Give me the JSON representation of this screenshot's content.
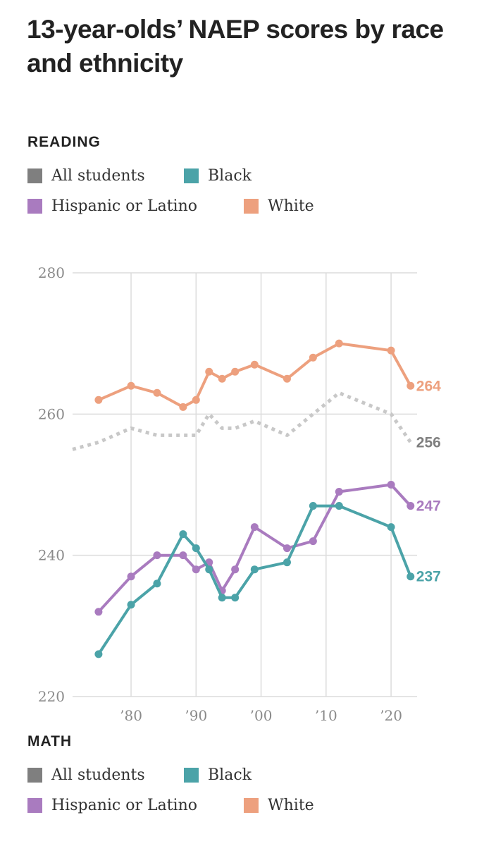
{
  "header": {
    "title": "13-year-olds’ NAEP scores by race and ethnicity"
  },
  "sections": {
    "reading_label": "READING",
    "math_label": "MATH"
  },
  "legend": [
    {
      "key": "all",
      "label": "All students",
      "color": "#7f7f7f"
    },
    {
      "key": "black",
      "label": "Black",
      "color": "#4ba3a8"
    },
    {
      "key": "hispanic",
      "label": "Hispanic or Latino",
      "color": "#a97bbf"
    },
    {
      "key": "white",
      "label": "White",
      "color": "#eda07e"
    }
  ],
  "chart_data": {
    "type": "line",
    "title": "13-year-olds’ NAEP scores by race and ethnicity",
    "subtitle": "READING",
    "xlabel": "",
    "ylabel": "",
    "ylim": [
      220,
      280
    ],
    "xlim": [
      1971,
      2024
    ],
    "y_ticks": [
      {
        "value": 220,
        "label": "220"
      },
      {
        "value": 240,
        "label": "240"
      },
      {
        "value": 260,
        "label": "260"
      },
      {
        "value": 280,
        "label": "280"
      }
    ],
    "x_ticks": [
      {
        "value": 1980,
        "label": "’80"
      },
      {
        "value": 1990,
        "label": "’90"
      },
      {
        "value": 2000,
        "label": "’00"
      },
      {
        "value": 2010,
        "label": "’10"
      },
      {
        "value": 2020,
        "label": "’20"
      }
    ],
    "grid": true,
    "series": [
      {
        "name": "All students",
        "key": "all",
        "color": "#c8c8c8",
        "label_color": "#7f7f7f",
        "dashed": true,
        "markers": false,
        "end_label": "256",
        "x": [
          1971,
          1975,
          1980,
          1984,
          1988,
          1990,
          1992,
          1994,
          1996,
          1999,
          2004,
          2008,
          2012,
          2020,
          2023
        ],
        "y": [
          255,
          256,
          258,
          257,
          257,
          257,
          260,
          258,
          258,
          259,
          257,
          260,
          263,
          260,
          256
        ]
      },
      {
        "name": "White",
        "key": "white",
        "color": "#eda07e",
        "label_color": "#eda07e",
        "dashed": false,
        "markers": true,
        "end_label": "264",
        "x": [
          1975,
          1980,
          1984,
          1988,
          1990,
          1992,
          1994,
          1996,
          1999,
          2004,
          2008,
          2012,
          2020,
          2023
        ],
        "y": [
          262,
          264,
          263,
          261,
          262,
          266,
          265,
          266,
          267,
          265,
          268,
          270,
          269,
          264
        ]
      },
      {
        "name": "Hispanic or Latino",
        "key": "hispanic",
        "color": "#a97bbf",
        "label_color": "#a97bbf",
        "dashed": false,
        "markers": true,
        "end_label": "247",
        "x": [
          1975,
          1980,
          1984,
          1988,
          1990,
          1992,
          1994,
          1996,
          1999,
          2004,
          2008,
          2012,
          2020,
          2023
        ],
        "y": [
          232,
          237,
          240,
          240,
          238,
          239,
          235,
          238,
          244,
          241,
          242,
          249,
          250,
          247
        ]
      },
      {
        "name": "Black",
        "key": "black",
        "color": "#4ba3a8",
        "label_color": "#4ba3a8",
        "dashed": false,
        "markers": true,
        "end_label": "237",
        "x": [
          1975,
          1980,
          1984,
          1988,
          1990,
          1992,
          1994,
          1996,
          1999,
          2004,
          2008,
          2012,
          2020,
          2023
        ],
        "y": [
          226,
          233,
          236,
          243,
          241,
          238,
          234,
          234,
          238,
          239,
          247,
          247,
          244,
          237
        ]
      }
    ]
  }
}
